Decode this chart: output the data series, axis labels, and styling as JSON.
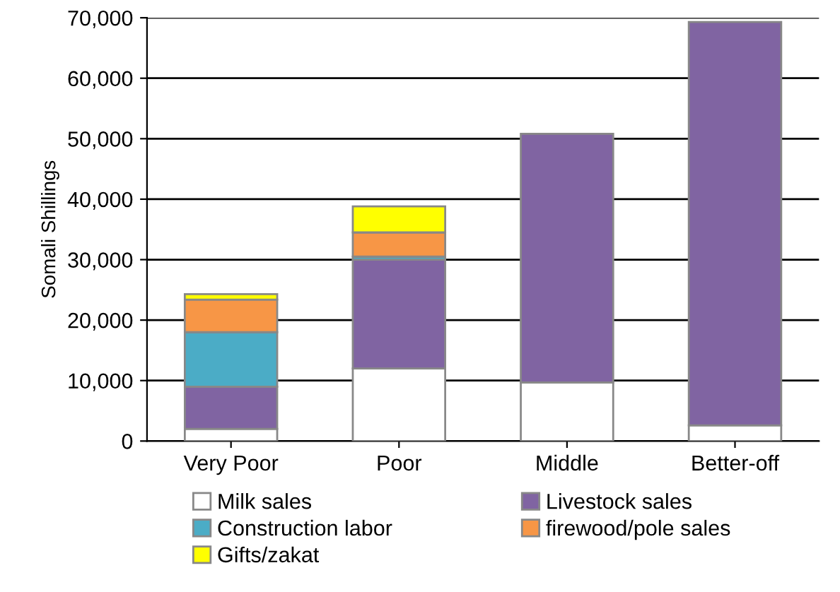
{
  "chart_data": {
    "type": "bar",
    "stacked": true,
    "ylabel": "Somali Shillings",
    "categories": [
      "Very Poor",
      "Poor",
      "Middle",
      "Better-off"
    ],
    "series": [
      {
        "name": "Milk sales",
        "color": "#ffffff",
        "values": [
          2000,
          12000,
          9700,
          2600
        ]
      },
      {
        "name": "Livestock sales",
        "color": "#8064a2",
        "values": [
          7000,
          18000,
          41100,
          66700
        ]
      },
      {
        "name": "Construction labor",
        "color": "#4bacc6",
        "values": [
          9000,
          500,
          null,
          null
        ]
      },
      {
        "name": "firewood/pole sales",
        "color": "#f79646",
        "values": [
          5400,
          4000,
          null,
          null
        ]
      },
      {
        "name": "Gifts/zakat",
        "color": "#ffff00",
        "values": [
          900,
          4300,
          null,
          null
        ]
      }
    ],
    "ylim": [
      0,
      70000
    ],
    "yticks": [
      {
        "value": 0,
        "label": "0"
      },
      {
        "value": 10000,
        "label": "10,000"
      },
      {
        "value": 20000,
        "label": "20,000"
      },
      {
        "value": 30000,
        "label": "30,000"
      },
      {
        "value": 40000,
        "label": "40,000"
      },
      {
        "value": 50000,
        "label": "50,000"
      },
      {
        "value": 60000,
        "label": "60,000"
      },
      {
        "value": 70000,
        "label": "70,000"
      }
    ],
    "grid": "y",
    "legend": "bottom"
  }
}
